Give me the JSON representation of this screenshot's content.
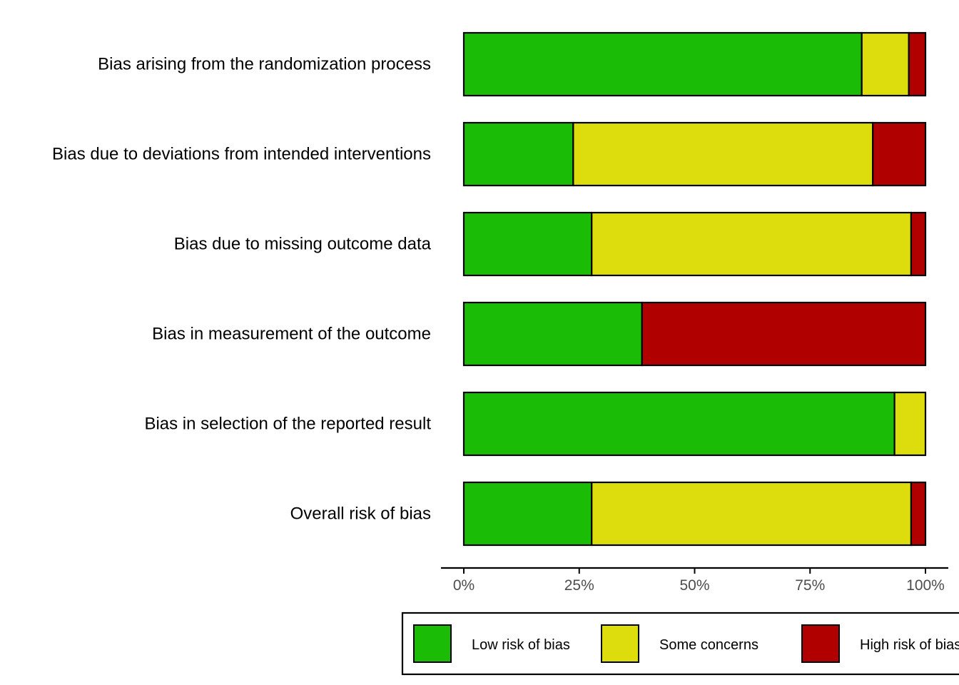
{
  "chart_data": {
    "type": "bar",
    "orientation": "horizontal",
    "stacked": true,
    "categories": [
      "Bias arising from the randomization process",
      "Bias due to deviations from intended interventions",
      "Bias due to missing outcome data",
      "Bias in measurement of the outcome",
      "Bias in selection of the reported result",
      "Overall risk of bias"
    ],
    "series": [
      {
        "name": "Low risk of bias",
        "color": "#1abc06",
        "values": [
          86.2,
          23.7,
          27.7,
          38.6,
          93.3,
          27.7
        ]
      },
      {
        "name": "Some concerns",
        "color": "#dddd0d",
        "values": [
          10.2,
          64.9,
          69.2,
          0,
          6.7,
          69.2
        ]
      },
      {
        "name": "High risk of bias",
        "color": "#b00000",
        "values": [
          3.6,
          11.4,
          3.1,
          61.4,
          0,
          3.1
        ]
      }
    ],
    "xlim": [
      0,
      100
    ],
    "xticks": [
      "0%",
      "25%",
      "50%",
      "75%",
      "100%"
    ],
    "grid": false,
    "legend_position": "bottom"
  }
}
